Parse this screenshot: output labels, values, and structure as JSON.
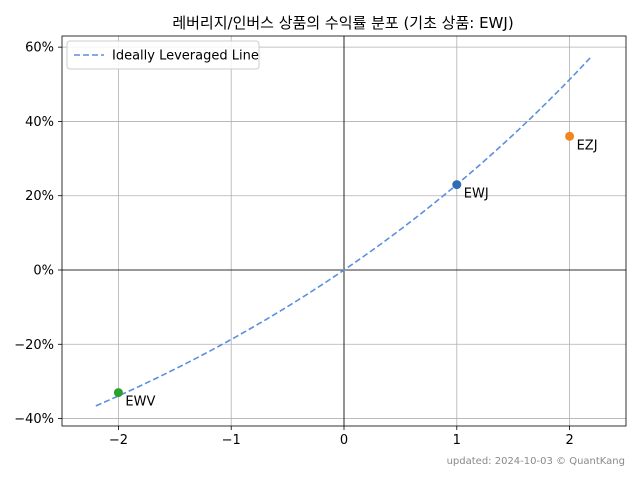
{
  "chart_data": {
    "type": "scatter",
    "title": "레버리지/인버스 상품의 수익률 분포 (기초 상품: EWJ)",
    "xlabel": "",
    "ylabel": "",
    "xlim": [
      -2.5,
      2.5
    ],
    "ylim": [
      -0.42,
      0.63
    ],
    "x_ticks": [
      -2,
      -1,
      0,
      1,
      2
    ],
    "x_tick_labels": [
      "−2",
      "−1",
      "0",
      "1",
      "2"
    ],
    "y_ticks": [
      -0.4,
      -0.2,
      0,
      0.2,
      0.4,
      0.6
    ],
    "y_tick_labels": [
      "−40%",
      "−20%",
      "0%",
      "20%",
      "40%",
      "60%"
    ],
    "grid": true,
    "legend_position": "top-left",
    "line": {
      "name": "Ideally Leveraged Line",
      "style": "dashed",
      "color": "#5b8fe0",
      "base_return": 0.23,
      "x_range": [
        -2.2,
        2.2
      ]
    },
    "points": [
      {
        "label": "EWJ",
        "x": 1,
        "y": 0.23,
        "color": "#2f6db5"
      },
      {
        "label": "EZJ",
        "x": 2,
        "y": 0.36,
        "color": "#f0861c"
      },
      {
        "label": "EWV",
        "x": -2,
        "y": -0.33,
        "color": "#2ca02c"
      }
    ],
    "footer": "updated: 2024-10-03 © QuantKang"
  }
}
